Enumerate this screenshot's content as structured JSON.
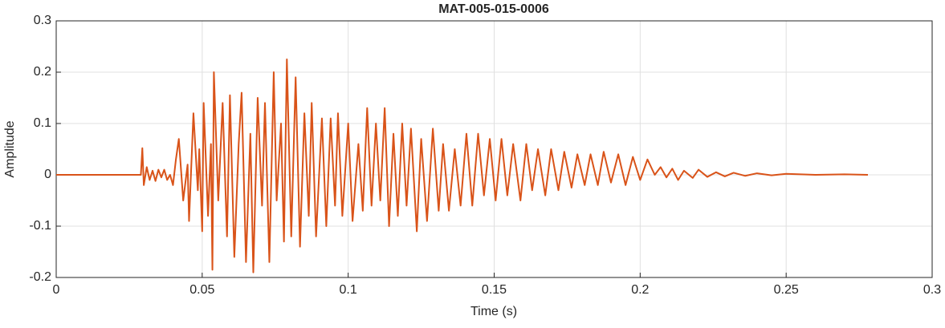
{
  "chart_data": {
    "type": "line",
    "title": "MAT-005-015-0006",
    "xlabel": "Time (s)",
    "ylabel": "Amplitude",
    "color": "#d95319",
    "grid": true,
    "xlim": [
      0,
      0.3
    ],
    "xticks": [
      0,
      0.05,
      0.1,
      0.15,
      0.2,
      0.25,
      0.3
    ],
    "ylim": [
      -0.2,
      0.3
    ],
    "yticks": [
      -0.2,
      -0.1,
      0,
      0.1,
      0.2,
      0.3
    ],
    "x": [
      0,
      0.029,
      0.0295,
      0.03,
      0.031,
      0.032,
      0.033,
      0.034,
      0.035,
      0.036,
      0.037,
      0.038,
      0.039,
      0.04,
      0.041,
      0.042,
      0.0435,
      0.045,
      0.0455,
      0.047,
      0.0485,
      0.049,
      0.05,
      0.0505,
      0.052,
      0.053,
      0.0535,
      0.054,
      0.0555,
      0.057,
      0.0585,
      0.0595,
      0.061,
      0.0625,
      0.0635,
      0.065,
      0.0665,
      0.0675,
      0.069,
      0.0705,
      0.0715,
      0.073,
      0.0745,
      0.0755,
      0.077,
      0.078,
      0.079,
      0.0805,
      0.082,
      0.0835,
      0.085,
      0.0865,
      0.0875,
      0.089,
      0.091,
      0.0925,
      0.094,
      0.0955,
      0.0965,
      0.098,
      0.1,
      0.1015,
      0.1035,
      0.105,
      0.1065,
      0.108,
      0.1095,
      0.111,
      0.1125,
      0.114,
      0.1155,
      0.117,
      0.1185,
      0.12,
      0.1215,
      0.1235,
      0.125,
      0.127,
      0.129,
      0.131,
      0.1325,
      0.1345,
      0.1365,
      0.1385,
      0.1405,
      0.1425,
      0.1445,
      0.1465,
      0.1485,
      0.1505,
      0.1525,
      0.1545,
      0.1565,
      0.159,
      0.161,
      0.163,
      0.165,
      0.1675,
      0.1695,
      0.172,
      0.174,
      0.1765,
      0.1785,
      0.181,
      0.183,
      0.1855,
      0.1875,
      0.19,
      0.1925,
      0.195,
      0.1975,
      0.2,
      0.2025,
      0.205,
      0.207,
      0.209,
      0.211,
      0.213,
      0.215,
      0.218,
      0.22,
      0.223,
      0.226,
      0.229,
      0.232,
      0.236,
      0.24,
      0.245,
      0.25,
      0.26,
      0.27,
      0.278
    ],
    "values": [
      0,
      0,
      0.052,
      -0.02,
      0.015,
      -0.01,
      0.008,
      -0.012,
      0.01,
      -0.005,
      0.01,
      -0.01,
      0,
      -0.02,
      0.03,
      0.07,
      -0.05,
      0.02,
      -0.09,
      0.12,
      -0.03,
      0.05,
      -0.11,
      0.14,
      -0.08,
      0.06,
      -0.185,
      0.2,
      -0.05,
      0.14,
      -0.12,
      0.155,
      -0.16,
      0.06,
      0.16,
      -0.17,
      0.08,
      -0.19,
      0.15,
      -0.06,
      0.14,
      -0.17,
      0.2,
      -0.05,
      0.1,
      -0.13,
      0.225,
      -0.12,
      0.19,
      -0.14,
      0.12,
      -0.08,
      0.14,
      -0.12,
      0.11,
      -0.1,
      0.11,
      -0.06,
      0.12,
      -0.08,
      0.1,
      -0.09,
      0.06,
      -0.07,
      0.13,
      -0.06,
      0.1,
      -0.05,
      0.13,
      -0.1,
      0.08,
      -0.08,
      0.1,
      -0.06,
      0.09,
      -0.11,
      0.07,
      -0.09,
      0.09,
      -0.07,
      0.06,
      -0.07,
      0.05,
      -0.06,
      0.08,
      -0.06,
      0.08,
      -0.04,
      0.07,
      -0.05,
      0.07,
      -0.04,
      0.06,
      -0.05,
      0.06,
      -0.03,
      0.05,
      -0.04,
      0.05,
      -0.03,
      0.045,
      -0.025,
      0.04,
      -0.02,
      0.04,
      -0.02,
      0.045,
      -0.015,
      0.04,
      -0.02,
      0.035,
      -0.01,
      0.03,
      0,
      0.015,
      -0.005,
      0.012,
      -0.01,
      0.008,
      -0.006,
      0.01,
      -0.004,
      0.005,
      -0.003,
      0.004,
      -0.002,
      0.003,
      -0.001,
      0.002,
      0,
      0.001,
      0
    ]
  }
}
